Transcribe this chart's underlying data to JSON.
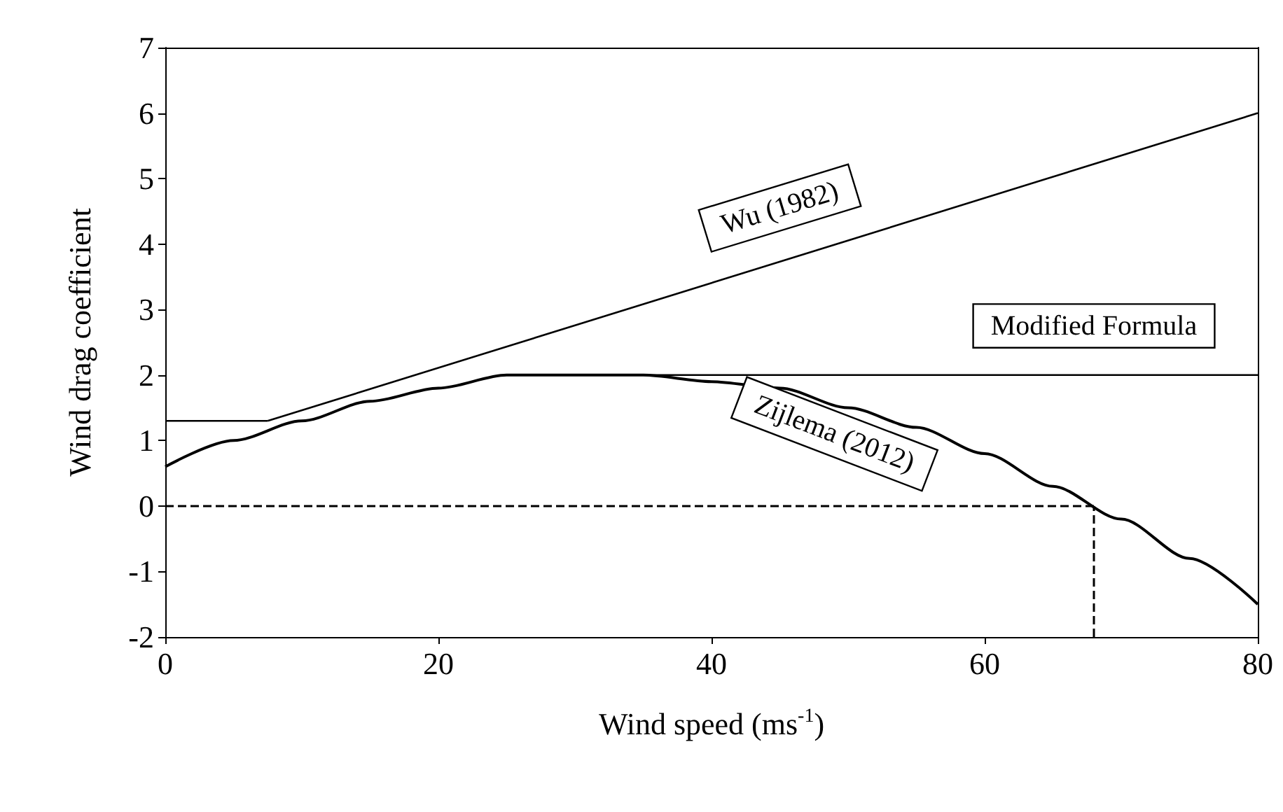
{
  "chart_data": {
    "type": "line",
    "xlabel": "Wind speed (ms$^{-1}$)",
    "ylabel": "Wind drag coefficient",
    "xlim": [
      0,
      80
    ],
    "ylim": [
      -2,
      7
    ],
    "xticks": [
      0,
      20,
      40,
      60,
      80
    ],
    "yticks": [
      -2,
      -1,
      0,
      1,
      2,
      3,
      4,
      5,
      6,
      7
    ],
    "marker": "none",
    "series": [
      {
        "name": "Wu (1982)",
        "color": "#000000",
        "x": [
          7.5,
          80
        ],
        "values": [
          1.3,
          6.0
        ]
      },
      {
        "name": "Modified Formula",
        "color": "#000000",
        "x": [
          0,
          7.5,
          20,
          31,
          80
        ],
        "values": [
          1.3,
          1.3,
          null,
          2.0,
          2.0
        ]
      },
      {
        "name": "Zijlema (2012)",
        "color": "#000000",
        "x": [
          0,
          5,
          10,
          15,
          20,
          25,
          30,
          35,
          40,
          45,
          50,
          55,
          60,
          65,
          70,
          75,
          80
        ],
        "values": [
          0.6,
          1.0,
          1.3,
          1.6,
          1.8,
          2.0,
          2.0,
          2.0,
          1.9,
          1.8,
          1.5,
          1.2,
          0.8,
          0.3,
          -0.2,
          -0.8,
          -1.5
        ]
      }
    ],
    "ref_lines": [
      {
        "axis": "y",
        "value": 0,
        "line_style": "dashed",
        "color": "#000000"
      },
      {
        "axis": "x",
        "value": 68,
        "line_style": "dashed",
        "color": "#000000"
      }
    ]
  }
}
